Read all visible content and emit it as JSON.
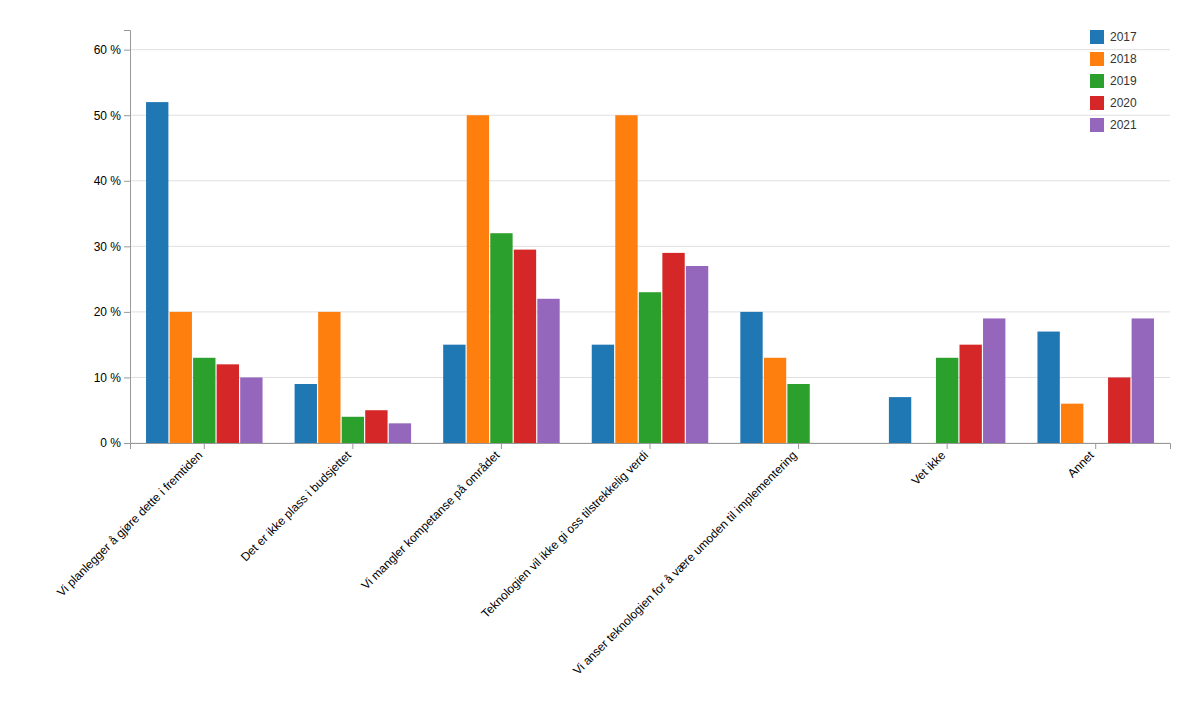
{
  "chart_data": {
    "type": "bar",
    "categories": [
      "Vi planlegger å gjøre dette i fremtiden",
      "Det er ikke plass i budsjettet",
      "Vi mangler kompetanse på området",
      "Teknologien vil ikke gi oss tilstrekkelig verdi",
      "Vi anser teknologien for å være umoden til implementering",
      "Vet ikke",
      "Annet"
    ],
    "series": [
      {
        "name": "2017",
        "values": [
          52,
          9,
          15,
          15,
          20,
          7,
          17
        ]
      },
      {
        "name": "2018",
        "values": [
          20,
          20,
          50,
          50,
          13,
          0,
          6
        ]
      },
      {
        "name": "2019",
        "values": [
          13,
          4,
          32,
          23,
          9,
          13,
          0
        ]
      },
      {
        "name": "2020",
        "values": [
          12,
          5,
          29.5,
          29,
          0,
          15,
          10
        ]
      },
      {
        "name": "2021",
        "values": [
          10,
          3,
          22,
          27,
          0,
          19,
          19
        ]
      }
    ],
    "ylim": [
      0,
      63
    ],
    "yticks": [
      {
        "value": 0,
        "label": "0 %"
      },
      {
        "value": 10,
        "label": "10 %"
      },
      {
        "value": 20,
        "label": "20 %"
      },
      {
        "value": 30,
        "label": "30 %"
      },
      {
        "value": 40,
        "label": "40 %"
      },
      {
        "value": 50,
        "label": "50 %"
      },
      {
        "value": 60,
        "label": "60 %"
      }
    ],
    "grid": true,
    "legend": "upper right"
  }
}
